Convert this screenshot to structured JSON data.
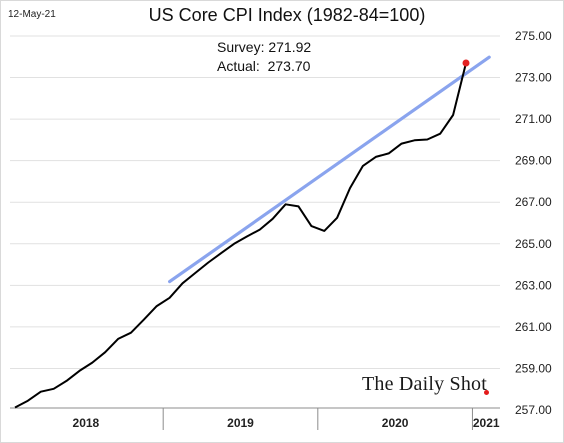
{
  "date_stamp": "12-May-21",
  "chart_data": {
    "type": "line",
    "title": "US Core CPI Index (1982-84=100)",
    "xlabel": "",
    "ylabel": "",
    "ylim": [
      257.0,
      275.0
    ],
    "yticks": [
      "257.00",
      "259.00",
      "261.00",
      "263.00",
      "265.00",
      "267.00",
      "269.00",
      "271.00",
      "273.00",
      "275.00"
    ],
    "year_labels": [
      "2018",
      "2019",
      "2020",
      "2021"
    ],
    "year_boundaries_month_index": [
      -0.5,
      11.5,
      23.5,
      35.5,
      47.5
    ],
    "grid": true,
    "series": [
      {
        "color": "#000000",
        "values": [
          257.12,
          257.45,
          257.88,
          258.02,
          258.4,
          258.88,
          259.28,
          259.78,
          260.42,
          260.72,
          261.35,
          262.0,
          262.4,
          263.1,
          263.6,
          264.1,
          264.55,
          265.0,
          265.35,
          265.68,
          266.2,
          266.9,
          266.8,
          265.85,
          265.62,
          266.25,
          267.68,
          268.75,
          269.18,
          269.35,
          269.82,
          269.98,
          270.02,
          270.3,
          271.2,
          273.7
        ]
      },
      {
        "color": "#8aa4ee",
        "trend_start_index": 12,
        "trend_start_value": 263.18,
        "trend_end_index": 36.8,
        "trend_end_value": 273.98
      }
    ],
    "highlight_point": {
      "index": 35,
      "value": 273.7,
      "color": "#e32222"
    },
    "annotation": {
      "survey_label": "Survey: 271.92",
      "actual_label": "Actual:  273.70"
    },
    "source_logo": "The Daily Shot"
  }
}
